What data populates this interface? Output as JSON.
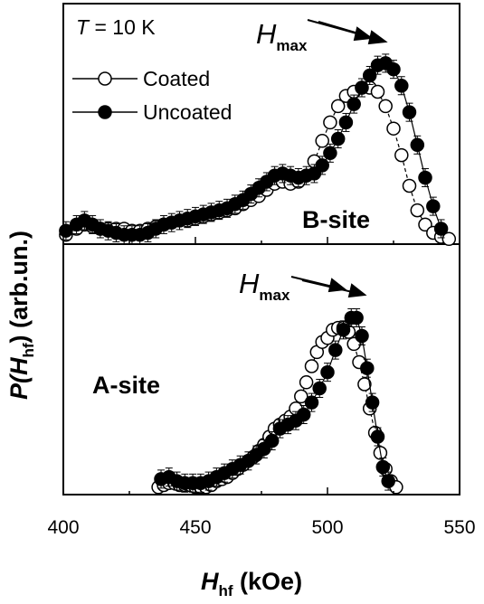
{
  "chart_data": [
    {
      "panel": "top",
      "type": "line",
      "annotation_temperature": {
        "symbol": "T",
        "rest": " = 10 K"
      },
      "site_label": "B-site",
      "annotation_hmax": {
        "main": "H",
        "sub": "max"
      },
      "legend": {
        "placement": "top-left",
        "entries": [
          "Coated",
          "Uncoated"
        ]
      },
      "xlim": [
        400,
        550
      ],
      "ylim": [
        0,
        1.0
      ],
      "grid": false,
      "series": [
        {
          "name": "Coated",
          "marker": "open-circle",
          "x": [
            401,
            405,
            408,
            411,
            414,
            417,
            420,
            423,
            426,
            429,
            432,
            435,
            438,
            441,
            444,
            447,
            450,
            453,
            456,
            459,
            462,
            465,
            468,
            471,
            474,
            477,
            480,
            483,
            486,
            489,
            492,
            495,
            498,
            501,
            504,
            507,
            510,
            513,
            516,
            519,
            522,
            525,
            528,
            531,
            534,
            537,
            540,
            543,
            546
          ],
          "y": [
            0.01,
            0.04,
            0.06,
            0.05,
            0.04,
            0.04,
            0.04,
            0.04,
            0.03,
            0.03,
            0.04,
            0.05,
            0.06,
            0.07,
            0.08,
            0.08,
            0.09,
            0.1,
            0.11,
            0.12,
            0.13,
            0.14,
            0.16,
            0.18,
            0.2,
            0.23,
            0.26,
            0.27,
            0.26,
            0.27,
            0.3,
            0.37,
            0.47,
            0.56,
            0.64,
            0.69,
            0.71,
            0.73,
            0.73,
            0.71,
            0.64,
            0.53,
            0.4,
            0.25,
            0.13,
            0.06,
            0.02,
            0.0,
            -0.01
          ]
        },
        {
          "name": "Uncoated",
          "marker": "filled-circle",
          "x": [
            401,
            405,
            408,
            411,
            414,
            417,
            420,
            423,
            426,
            429,
            432,
            435,
            438,
            441,
            444,
            447,
            450,
            453,
            456,
            459,
            462,
            465,
            468,
            471,
            474,
            477,
            480,
            483,
            486,
            489,
            492,
            495,
            498,
            501,
            504,
            507,
            510,
            513,
            516,
            519,
            522,
            525,
            528,
            531,
            534,
            537,
            540,
            543
          ],
          "y": [
            0.03,
            0.06,
            0.08,
            0.06,
            0.04,
            0.03,
            0.02,
            0.01,
            0.01,
            0.01,
            0.02,
            0.04,
            0.06,
            0.07,
            0.08,
            0.09,
            0.1,
            0.11,
            0.12,
            0.13,
            0.14,
            0.16,
            0.18,
            0.21,
            0.24,
            0.27,
            0.3,
            0.31,
            0.3,
            0.29,
            0.3,
            0.31,
            0.35,
            0.41,
            0.48,
            0.56,
            0.65,
            0.73,
            0.79,
            0.84,
            0.85,
            0.82,
            0.74,
            0.61,
            0.45,
            0.29,
            0.15,
            0.04
          ]
        }
      ]
    },
    {
      "panel": "bottom",
      "type": "line",
      "site_label": "A-site",
      "annotation_hmax": {
        "main": "H",
        "sub": "max"
      },
      "xlim": [
        400,
        550
      ],
      "ylim": [
        0,
        1.0
      ],
      "grid": false,
      "series": [
        {
          "name": "Coated",
          "marker": "open-circle",
          "x": [
            436,
            438,
            440,
            442,
            444,
            446,
            448,
            450,
            452,
            454,
            456,
            458,
            460,
            462,
            464,
            466,
            468,
            470,
            472,
            474,
            476,
            478,
            480,
            482,
            484,
            486,
            488,
            490,
            492,
            494,
            496,
            498,
            500,
            502,
            504,
            506,
            508,
            510,
            512,
            514,
            516,
            518,
            520,
            522,
            524,
            526
          ],
          "y": [
            0.01,
            0.02,
            0.03,
            0.03,
            0.02,
            0.02,
            0.02,
            0.01,
            0.01,
            0.01,
            0.02,
            0.04,
            0.05,
            0.06,
            0.08,
            0.1,
            0.12,
            0.14,
            0.16,
            0.19,
            0.22,
            0.26,
            0.3,
            0.32,
            0.34,
            0.36,
            0.4,
            0.46,
            0.53,
            0.61,
            0.68,
            0.73,
            0.75,
            0.79,
            0.8,
            0.8,
            0.78,
            0.72,
            0.63,
            0.52,
            0.4,
            0.28,
            0.18,
            0.1,
            0.04,
            0.01
          ]
        },
        {
          "name": "Uncoated",
          "marker": "filled-circle",
          "x": [
            437,
            440,
            443,
            446,
            449,
            452,
            455,
            458,
            461,
            464,
            467,
            470,
            473,
            476,
            479,
            482,
            485,
            488,
            491,
            494,
            497,
            500,
            503,
            506,
            509,
            511,
            513,
            515,
            517,
            519,
            521,
            523
          ],
          "y": [
            0.05,
            0.06,
            0.04,
            0.03,
            0.03,
            0.03,
            0.04,
            0.06,
            0.08,
            0.1,
            0.12,
            0.14,
            0.17,
            0.2,
            0.24,
            0.3,
            0.32,
            0.34,
            0.37,
            0.43,
            0.5,
            0.58,
            0.69,
            0.79,
            0.85,
            0.85,
            0.76,
            0.6,
            0.43,
            0.26,
            0.11,
            0.04
          ]
        }
      ]
    }
  ],
  "axes": {
    "x_ticks": [
      "400",
      "450",
      "500",
      "550"
    ],
    "x_title": {
      "main": "H",
      "sub": "hf",
      "rest": " (kOe)"
    },
    "y_title": {
      "main": "P(H",
      "sub": "hf",
      "rest": ") (arb.un.)"
    }
  },
  "colors": {
    "ink": "#000000",
    "open_fill": "#ffffff"
  }
}
